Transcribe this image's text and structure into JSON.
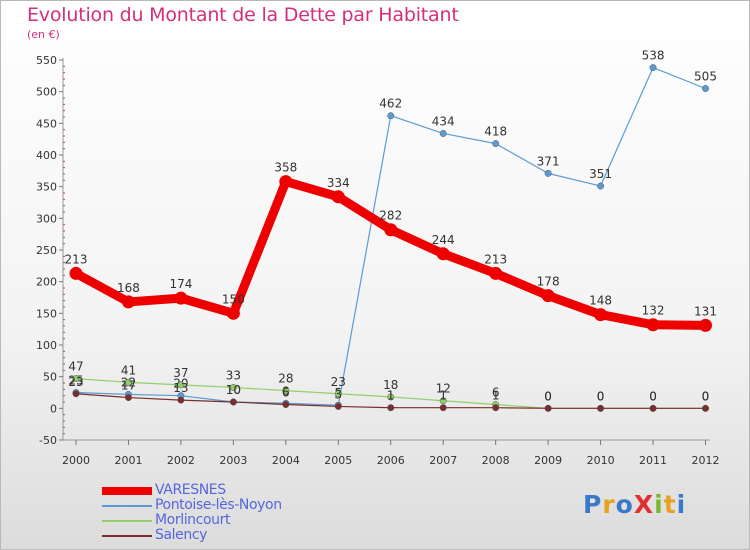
{
  "header": {
    "title": "Evolution du Montant de la Dette par Habitant",
    "subtitle": "(en €)"
  },
  "logo": {
    "text": "ProXiti",
    "letters": [
      {
        "ch": "P",
        "color": "#3a78c8"
      },
      {
        "ch": "r",
        "color": "#e8a020"
      },
      {
        "ch": "o",
        "color": "#3a78c8"
      },
      {
        "ch": "X",
        "color": "#e03030"
      },
      {
        "ch": "i",
        "color": "#7ab830"
      },
      {
        "ch": "t",
        "color": "#e8a020"
      },
      {
        "ch": "i",
        "color": "#3a78c8"
      }
    ]
  },
  "chart_data": {
    "type": "line",
    "title": "Evolution du Montant de la Dette par Habitant",
    "subtitle": "(en €)",
    "x": [
      "2000",
      "2001",
      "2002",
      "2003",
      "2004",
      "2005",
      "2006",
      "2007",
      "2008",
      "2009",
      "2010",
      "2011",
      "2012"
    ],
    "ylim": [
      -50,
      550
    ],
    "yticks": [
      -50,
      0,
      50,
      100,
      150,
      200,
      250,
      300,
      350,
      400,
      450,
      500,
      550
    ],
    "grid": false,
    "legend_position": "bottom-left",
    "series": [
      {
        "name": "VARESNES",
        "color": "#ee0000",
        "values": [
          213,
          168,
          174,
          150,
          358,
          334,
          282,
          244,
          213,
          178,
          148,
          132,
          131
        ],
        "labels": [
          "213",
          "168",
          "174",
          "150",
          "358",
          "334",
          "282",
          "244",
          "213",
          "178",
          "148",
          "132",
          "131"
        ]
      },
      {
        "name": "Pontoise-lès-Noyon",
        "color": "#5b9bd5",
        "values": [
          25,
          22,
          20,
          10,
          8,
          5,
          462,
          434,
          418,
          371,
          351,
          538,
          505
        ],
        "labels": [
          "25",
          "22",
          "20",
          "10",
          "8",
          "5",
          "462",
          "434",
          "418",
          "371",
          "351",
          "538",
          "505"
        ]
      },
      {
        "name": "Morlincourt",
        "color": "#8fd168",
        "values": [
          47,
          41,
          37,
          33,
          28,
          23,
          18,
          12,
          6,
          0,
          0,
          0,
          0
        ],
        "labels": [
          "47",
          "41",
          "37",
          "33",
          "28",
          "23",
          "18",
          "12",
          "6",
          "0",
          "0",
          "0",
          "0"
        ]
      },
      {
        "name": "Salency",
        "color": "#7a2d2d",
        "values": [
          23,
          17,
          13,
          10,
          6,
          3,
          1,
          1,
          1,
          0,
          0,
          0,
          0
        ],
        "labels": [
          "23",
          "17",
          "13",
          "10",
          "6",
          "3",
          "1",
          "1",
          "1",
          "0",
          "0",
          "0",
          "0"
        ]
      }
    ]
  }
}
